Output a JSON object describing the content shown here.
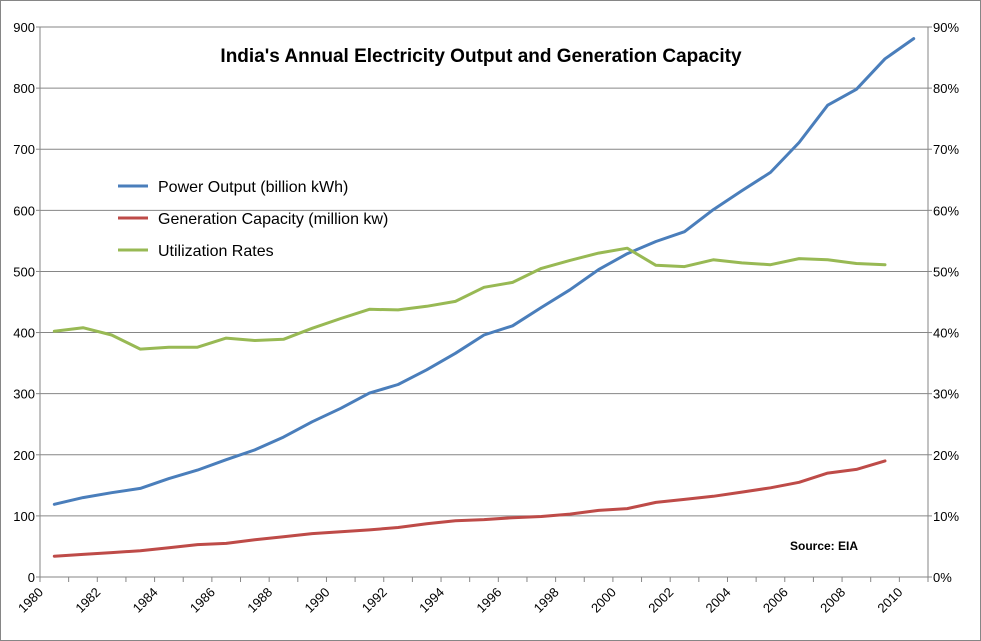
{
  "chart_data": {
    "type": "line",
    "title": "India's Annual Electricity Output and Generation Capacity",
    "annotation": "Source: EIA",
    "x": [
      1980.5,
      1981.5,
      1982.5,
      1983.5,
      1984.5,
      1985.5,
      1986.5,
      1987.5,
      1988.5,
      1989.5,
      1990.5,
      1991.5,
      1992.5,
      1993.5,
      1994.5,
      1995.5,
      1996.5,
      1997.5,
      1998.5,
      1999.5,
      2000.5,
      2001.5,
      2002.5,
      2003.5,
      2004.5,
      2005.5,
      2006.5,
      2007.5,
      2008.5,
      2009.5,
      2010.5
    ],
    "x_ticks": [
      1980,
      1982,
      1984,
      1986,
      1988,
      1990,
      1992,
      1994,
      1996,
      1998,
      2000,
      2002,
      2004,
      2006,
      2008,
      2010
    ],
    "x_tick_labels": [
      "1980",
      "1982",
      "1984",
      "1986",
      "1988",
      "1990",
      "1992",
      "1994",
      "1996",
      "1998",
      "2000",
      "2002",
      "2004",
      "2006",
      "2008",
      "2010"
    ],
    "xlim": [
      1980,
      2011
    ],
    "ylim_left": [
      0,
      900
    ],
    "ylim_right": [
      0,
      90
    ],
    "y_ticks_left": [
      "0",
      "100",
      "200",
      "300",
      "400",
      "500",
      "600",
      "700",
      "800",
      "900"
    ],
    "y_ticks_right": [
      "0%",
      "10%",
      "20%",
      "30%",
      "40%",
      "50%",
      "60%",
      "70%",
      "80%",
      "90%"
    ],
    "grid": "horizontal",
    "legend_position": "upper-left",
    "series": [
      {
        "name": "Power Output (billion kWh)",
        "axis": "left",
        "color": "#4a7ebb",
        "values": [
          119,
          130,
          138,
          145,
          161,
          175,
          192,
          208,
          229,
          254,
          276,
          301,
          315,
          339,
          366,
          396,
          411,
          441,
          470,
          503,
          529,
          549,
          565,
          601,
          632,
          662,
          711,
          772,
          798,
          848,
          881
        ]
      },
      {
        "name": "Generation Capacity (million kw)",
        "axis": "left",
        "color": "#be4b48",
        "values": [
          34,
          37,
          40,
          43,
          48,
          53,
          55,
          61,
          66,
          71,
          74,
          77,
          81,
          87,
          92,
          94,
          97,
          99,
          103,
          109,
          112,
          122,
          127,
          132,
          139,
          146,
          155,
          170,
          176,
          190,
          null
        ]
      },
      {
        "name": "Utilization Rates",
        "axis": "right",
        "color": "#98b954",
        "values": [
          40.2,
          40.8,
          39.6,
          37.3,
          37.6,
          37.6,
          39.1,
          38.7,
          38.9,
          40.7,
          42.3,
          43.8,
          43.7,
          44.3,
          45.1,
          47.4,
          48.2,
          50.5,
          51.8,
          53.0,
          53.8,
          51.0,
          50.8,
          51.9,
          51.4,
          51.1,
          52.1,
          51.9,
          51.3,
          51.1,
          null
        ]
      }
    ]
  }
}
